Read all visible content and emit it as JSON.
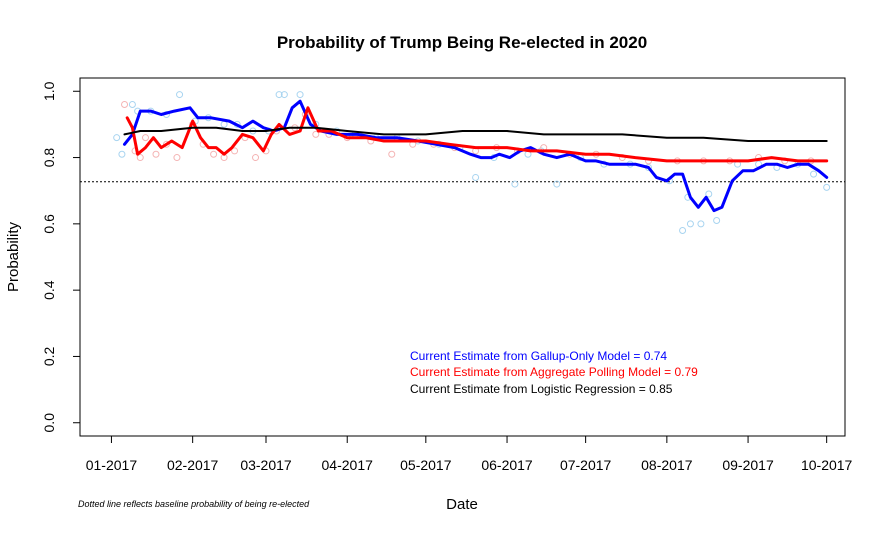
{
  "chart_data": {
    "type": "line",
    "title": "Probability of Trump Being Re-elected in 2020",
    "xlabel": "Date",
    "ylabel": "Probability",
    "xlim": [
      "2016-12-20",
      "2017-10-08"
    ],
    "ylim": [
      -0.04,
      1.04
    ],
    "x_tick_dates": [
      "2017-01-01",
      "2017-02-01",
      "2017-03-01",
      "2017-04-01",
      "2017-05-01",
      "2017-06-01",
      "2017-07-01",
      "2017-08-01",
      "2017-09-01",
      "2017-10-01"
    ],
    "x_tick_labels": [
      "01-2017",
      "02-2017",
      "03-2017",
      "04-2017",
      "05-2017",
      "06-2017",
      "07-2017",
      "08-2017",
      "09-2017",
      "10-2017"
    ],
    "y_ticks": [
      0.0,
      0.2,
      0.4,
      0.6,
      0.8,
      1.0
    ],
    "y_tick_labels": [
      "0.0",
      "0.2",
      "0.4",
      "0.6",
      "0.8",
      "1.0"
    ],
    "baseline": 0.727,
    "baseline_note": "Dotted line reflects baseline probability of being re-elected",
    "colors": {
      "gallup": "#0000ff",
      "aggregate": "#ff0000",
      "logistic": "#000000",
      "gallup_points": "#a8d4f0",
      "aggregate_points": "#f4b4b4"
    },
    "series": [
      {
        "name": "Gallup-Only Model",
        "x": [
          "2017-01-06",
          "2017-01-09",
          "2017-01-12",
          "2017-01-16",
          "2017-01-20",
          "2017-01-25",
          "2017-01-31",
          "2017-02-03",
          "2017-02-08",
          "2017-02-15",
          "2017-02-20",
          "2017-02-24",
          "2017-02-28",
          "2017-03-04",
          "2017-03-08",
          "2017-03-11",
          "2017-03-14",
          "2017-03-18",
          "2017-03-22",
          "2017-03-28",
          "2017-04-05",
          "2017-04-12",
          "2017-04-20",
          "2017-04-28",
          "2017-05-05",
          "2017-05-12",
          "2017-05-18",
          "2017-05-22",
          "2017-05-26",
          "2017-05-29",
          "2017-06-02",
          "2017-06-06",
          "2017-06-10",
          "2017-06-15",
          "2017-06-20",
          "2017-06-25",
          "2017-07-01",
          "2017-07-05",
          "2017-07-10",
          "2017-07-15",
          "2017-07-20",
          "2017-07-25",
          "2017-07-28",
          "2017-08-01",
          "2017-08-04",
          "2017-08-07",
          "2017-08-10",
          "2017-08-13",
          "2017-08-16",
          "2017-08-19",
          "2017-08-22",
          "2017-08-26",
          "2017-08-30",
          "2017-09-03",
          "2017-09-08",
          "2017-09-12",
          "2017-09-16",
          "2017-09-20",
          "2017-09-24",
          "2017-09-28",
          "2017-10-01"
        ],
        "y": [
          0.84,
          0.87,
          0.94,
          0.94,
          0.93,
          0.94,
          0.95,
          0.92,
          0.92,
          0.91,
          0.89,
          0.91,
          0.89,
          0.88,
          0.89,
          0.95,
          0.97,
          0.9,
          0.88,
          0.87,
          0.87,
          0.86,
          0.86,
          0.85,
          0.84,
          0.83,
          0.81,
          0.8,
          0.8,
          0.81,
          0.8,
          0.82,
          0.83,
          0.81,
          0.8,
          0.81,
          0.79,
          0.79,
          0.78,
          0.78,
          0.78,
          0.77,
          0.74,
          0.73,
          0.75,
          0.75,
          0.68,
          0.65,
          0.68,
          0.64,
          0.65,
          0.73,
          0.76,
          0.76,
          0.78,
          0.78,
          0.77,
          0.78,
          0.78,
          0.76,
          0.74
        ]
      },
      {
        "name": "Aggregate Polling Model",
        "x": [
          "2017-01-07",
          "2017-01-09",
          "2017-01-11",
          "2017-01-14",
          "2017-01-17",
          "2017-01-20",
          "2017-01-24",
          "2017-01-28",
          "2017-02-01",
          "2017-02-04",
          "2017-02-07",
          "2017-02-10",
          "2017-02-13",
          "2017-02-16",
          "2017-02-20",
          "2017-02-24",
          "2017-02-28",
          "2017-03-03",
          "2017-03-06",
          "2017-03-10",
          "2017-03-14",
          "2017-03-17",
          "2017-03-21",
          "2017-03-26",
          "2017-04-01",
          "2017-04-08",
          "2017-04-15",
          "2017-04-22",
          "2017-05-01",
          "2017-05-10",
          "2017-05-20",
          "2017-06-01",
          "2017-06-10",
          "2017-06-20",
          "2017-07-01",
          "2017-07-10",
          "2017-07-20",
          "2017-08-01",
          "2017-08-10",
          "2017-08-20",
          "2017-09-01",
          "2017-09-10",
          "2017-09-20",
          "2017-10-01"
        ],
        "y": [
          0.92,
          0.89,
          0.81,
          0.83,
          0.86,
          0.83,
          0.85,
          0.83,
          0.91,
          0.86,
          0.83,
          0.83,
          0.81,
          0.83,
          0.87,
          0.86,
          0.82,
          0.87,
          0.9,
          0.87,
          0.88,
          0.95,
          0.88,
          0.88,
          0.86,
          0.86,
          0.85,
          0.85,
          0.85,
          0.84,
          0.83,
          0.83,
          0.82,
          0.82,
          0.81,
          0.81,
          0.8,
          0.79,
          0.79,
          0.79,
          0.79,
          0.8,
          0.79,
          0.79
        ]
      },
      {
        "name": "Logistic Regression",
        "x": [
          "2017-01-06",
          "2017-01-12",
          "2017-01-20",
          "2017-02-01",
          "2017-02-10",
          "2017-02-20",
          "2017-03-01",
          "2017-03-10",
          "2017-03-20",
          "2017-04-01",
          "2017-04-15",
          "2017-05-01",
          "2017-05-15",
          "2017-06-01",
          "2017-06-15",
          "2017-07-01",
          "2017-07-15",
          "2017-08-01",
          "2017-08-15",
          "2017-09-01",
          "2017-09-15",
          "2017-10-01"
        ],
        "y": [
          0.87,
          0.88,
          0.88,
          0.89,
          0.89,
          0.88,
          0.88,
          0.89,
          0.89,
          0.88,
          0.87,
          0.87,
          0.88,
          0.88,
          0.87,
          0.87,
          0.87,
          0.86,
          0.86,
          0.85,
          0.85,
          0.85
        ]
      }
    ],
    "gallup_points": {
      "x": [
        "2017-01-03",
        "2017-01-05",
        "2017-01-09",
        "2017-01-11",
        "2017-01-16",
        "2017-01-22",
        "2017-01-27",
        "2017-02-02",
        "2017-02-07",
        "2017-02-13",
        "2017-02-18",
        "2017-02-24",
        "2017-03-02",
        "2017-03-06",
        "2017-03-08",
        "2017-03-14",
        "2017-03-20",
        "2017-03-28",
        "2017-04-04",
        "2017-04-12",
        "2017-04-20",
        "2017-04-28",
        "2017-05-06",
        "2017-05-14",
        "2017-05-20",
        "2017-05-27",
        "2017-06-04",
        "2017-06-09",
        "2017-06-14",
        "2017-06-20",
        "2017-06-29",
        "2017-07-08",
        "2017-07-18",
        "2017-07-25",
        "2017-08-02",
        "2017-08-07",
        "2017-08-09",
        "2017-08-10",
        "2017-08-14",
        "2017-08-17",
        "2017-08-20",
        "2017-08-28",
        "2017-09-05",
        "2017-09-12",
        "2017-09-20",
        "2017-09-26",
        "2017-10-01"
      ],
      "y": [
        0.86,
        0.81,
        0.96,
        0.94,
        0.94,
        0.93,
        0.99,
        0.91,
        0.92,
        0.9,
        0.9,
        0.88,
        0.88,
        0.99,
        0.99,
        0.99,
        0.9,
        0.88,
        0.87,
        0.86,
        0.86,
        0.85,
        0.84,
        0.83,
        0.74,
        0.8,
        0.72,
        0.81,
        0.82,
        0.72,
        0.8,
        0.78,
        0.78,
        0.77,
        0.73,
        0.58,
        0.68,
        0.6,
        0.6,
        0.69,
        0.61,
        0.78,
        0.78,
        0.77,
        0.78,
        0.75,
        0.71
      ]
    },
    "aggregate_points": {
      "x": [
        "2017-01-06",
        "2017-01-10",
        "2017-01-12",
        "2017-01-14",
        "2017-01-18",
        "2017-01-22",
        "2017-01-26",
        "2017-02-01",
        "2017-02-05",
        "2017-02-09",
        "2017-02-13",
        "2017-02-17",
        "2017-02-21",
        "2017-02-25",
        "2017-03-01",
        "2017-03-05",
        "2017-03-12",
        "2017-03-16",
        "2017-03-20",
        "2017-03-25",
        "2017-04-01",
        "2017-04-10",
        "2017-04-18",
        "2017-04-26",
        "2017-05-04",
        "2017-05-12",
        "2017-05-20",
        "2017-05-28",
        "2017-06-05",
        "2017-06-15",
        "2017-06-25",
        "2017-07-05",
        "2017-07-15",
        "2017-07-25",
        "2017-08-05",
        "2017-08-15",
        "2017-08-25",
        "2017-09-05",
        "2017-09-15",
        "2017-09-25"
      ],
      "y": [
        0.96,
        0.82,
        0.8,
        0.86,
        0.81,
        0.84,
        0.8,
        0.9,
        0.84,
        0.81,
        0.8,
        0.82,
        0.86,
        0.8,
        0.82,
        0.88,
        0.89,
        0.93,
        0.87,
        0.87,
        0.86,
        0.85,
        0.81,
        0.84,
        0.84,
        0.83,
        0.82,
        0.83,
        0.82,
        0.83,
        0.81,
        0.81,
        0.8,
        0.79,
        0.79,
        0.79,
        0.79,
        0.8,
        0.79,
        0.79
      ]
    },
    "annotations": [
      {
        "text": "Current Estimate from Gallup-Only Model = 0.74",
        "color": "#0000ff"
      },
      {
        "text": "Current Estimate from Aggregate Polling Model = 0.79",
        "color": "#ff0000"
      },
      {
        "text": "Current Estimate from Logistic Regression = 0.85",
        "color": "#000000"
      }
    ],
    "grid": false,
    "legend": "none"
  }
}
